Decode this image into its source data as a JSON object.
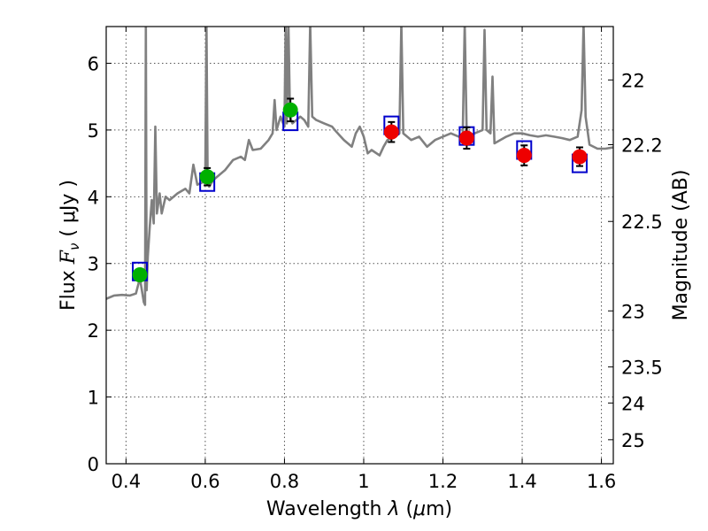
{
  "chart_data": {
    "type": "scatter",
    "xlabel_prefix": "Wavelength",
    "xlabel_symbol": "λ",
    "xlabel_unit_open": "(",
    "xlabel_unit_mu": "μ",
    "xlabel_unit_rest": "m)",
    "ylabel_prefix": "Flux",
    "ylabel_symbol": "F",
    "ylabel_sub": "ν",
    "ylabel_unit": "( μJy )",
    "y2label": "Magnitude (AB)",
    "xlim": [
      0.35,
      1.63
    ],
    "ylim": [
      0,
      6.55
    ],
    "x_ticks": [
      0.4,
      0.6,
      0.8,
      1.0,
      1.2,
      1.4,
      1.6
    ],
    "x_tick_labels": [
      "0.4",
      "0.6",
      "0.8",
      "1",
      "1.2",
      "1.4",
      "1.6"
    ],
    "y_ticks": [
      0,
      1,
      2,
      3,
      4,
      5,
      6
    ],
    "y_tick_labels": [
      "0",
      "1",
      "2",
      "3",
      "4",
      "5",
      "6"
    ],
    "y2_ticks": [
      {
        "label": "22",
        "flux": 5.75
      },
      {
        "label": "22.2",
        "flux": 4.78
      },
      {
        "label": "22.5",
        "flux": 3.63
      },
      {
        "label": "23",
        "flux": 2.29
      },
      {
        "label": "23.5",
        "flux": 1.45
      },
      {
        "label": "24",
        "flux": 0.91
      },
      {
        "label": "25",
        "flux": 0.36
      }
    ],
    "grid": true,
    "colors": {
      "spectrum": "#808080",
      "model_box": "#0000cc",
      "optical_point": "#00b000",
      "nir_point": "#ee0000",
      "error_bar": "#000000"
    },
    "spectrum": [
      [
        0.35,
        2.47
      ],
      [
        0.37,
        2.52
      ],
      [
        0.39,
        2.53
      ],
      [
        0.41,
        2.52
      ],
      [
        0.425,
        2.55
      ],
      [
        0.435,
        2.78
      ],
      [
        0.445,
        2.42
      ],
      [
        0.448,
        2.38
      ],
      [
        0.45,
        6.6
      ],
      [
        0.452,
        2.6
      ],
      [
        0.455,
        3.1
      ],
      [
        0.46,
        3.55
      ],
      [
        0.465,
        3.95
      ],
      [
        0.47,
        3.6
      ],
      [
        0.474,
        5.05
      ],
      [
        0.478,
        3.75
      ],
      [
        0.485,
        4.05
      ],
      [
        0.49,
        3.75
      ],
      [
        0.5,
        4.0
      ],
      [
        0.51,
        3.95
      ],
      [
        0.53,
        4.05
      ],
      [
        0.55,
        4.12
      ],
      [
        0.56,
        4.05
      ],
      [
        0.57,
        4.48
      ],
      [
        0.58,
        4.18
      ],
      [
        0.595,
        4.22
      ],
      [
        0.6,
        4.2
      ],
      [
        0.603,
        6.6
      ],
      [
        0.606,
        4.3
      ],
      [
        0.61,
        4.15
      ],
      [
        0.62,
        4.25
      ],
      [
        0.65,
        4.4
      ],
      [
        0.67,
        4.55
      ],
      [
        0.69,
        4.6
      ],
      [
        0.7,
        4.55
      ],
      [
        0.71,
        4.85
      ],
      [
        0.72,
        4.7
      ],
      [
        0.74,
        4.72
      ],
      [
        0.76,
        4.85
      ],
      [
        0.77,
        4.95
      ],
      [
        0.775,
        5.45
      ],
      [
        0.78,
        5.0
      ],
      [
        0.79,
        5.2
      ],
      [
        0.8,
        5.05
      ],
      [
        0.803,
        6.6
      ],
      [
        0.806,
        5.1
      ],
      [
        0.81,
        6.6
      ],
      [
        0.814,
        5.2
      ],
      [
        0.82,
        5.1
      ],
      [
        0.84,
        5.2
      ],
      [
        0.85,
        5.15
      ],
      [
        0.86,
        5.05
      ],
      [
        0.865,
        6.6
      ],
      [
        0.87,
        5.2
      ],
      [
        0.88,
        5.15
      ],
      [
        0.9,
        5.1
      ],
      [
        0.92,
        5.05
      ],
      [
        0.93,
        4.98
      ],
      [
        0.95,
        4.85
      ],
      [
        0.97,
        4.75
      ],
      [
        0.98,
        4.95
      ],
      [
        0.99,
        5.05
      ],
      [
        1.0,
        4.9
      ],
      [
        1.01,
        4.65
      ],
      [
        1.02,
        4.7
      ],
      [
        1.04,
        4.62
      ],
      [
        1.05,
        4.75
      ],
      [
        1.06,
        4.85
      ],
      [
        1.08,
        4.9
      ],
      [
        1.09,
        4.95
      ],
      [
        1.095,
        6.6
      ],
      [
        1.1,
        4.95
      ],
      [
        1.12,
        4.85
      ],
      [
        1.14,
        4.9
      ],
      [
        1.16,
        4.75
      ],
      [
        1.18,
        4.85
      ],
      [
        1.2,
        4.9
      ],
      [
        1.22,
        4.95
      ],
      [
        1.24,
        4.9
      ],
      [
        1.25,
        4.95
      ],
      [
        1.255,
        6.6
      ],
      [
        1.26,
        4.9
      ],
      [
        1.28,
        4.95
      ],
      [
        1.3,
        5.0
      ],
      [
        1.305,
        6.5
      ],
      [
        1.31,
        5.0
      ],
      [
        1.32,
        4.95
      ],
      [
        1.325,
        5.8
      ],
      [
        1.33,
        4.8
      ],
      [
        1.36,
        4.9
      ],
      [
        1.38,
        4.95
      ],
      [
        1.4,
        4.95
      ],
      [
        1.42,
        4.92
      ],
      [
        1.44,
        4.9
      ],
      [
        1.46,
        4.92
      ],
      [
        1.48,
        4.9
      ],
      [
        1.5,
        4.88
      ],
      [
        1.52,
        4.85
      ],
      [
        1.54,
        4.9
      ],
      [
        1.55,
        5.3
      ],
      [
        1.555,
        6.6
      ],
      [
        1.56,
        5.2
      ],
      [
        1.57,
        4.78
      ],
      [
        1.59,
        4.72
      ],
      [
        1.61,
        4.72
      ],
      [
        1.63,
        4.74
      ]
    ],
    "model_boxes": [
      {
        "x": 0.435,
        "y": 2.88
      },
      {
        "x": 0.605,
        "y": 4.22
      },
      {
        "x": 0.815,
        "y": 5.13
      },
      {
        "x": 1.07,
        "y": 5.07
      },
      {
        "x": 1.26,
        "y": 4.91
      },
      {
        "x": 1.405,
        "y": 4.7
      },
      {
        "x": 1.545,
        "y": 4.5
      }
    ],
    "series": [
      {
        "points": [
          {
            "x": 0.435,
            "y": 2.83,
            "err": 0.06
          },
          {
            "x": 0.605,
            "y": 4.3,
            "err": 0.13
          },
          {
            "x": 0.815,
            "y": 5.3,
            "err": 0.17
          }
        ]
      },
      {
        "points": [
          {
            "x": 1.07,
            "y": 4.97,
            "err": 0.15
          },
          {
            "x": 1.26,
            "y": 4.88,
            "err": 0.16
          },
          {
            "x": 1.405,
            "y": 4.62,
            "err": 0.15
          },
          {
            "x": 1.545,
            "y": 4.6,
            "err": 0.14
          }
        ]
      }
    ]
  }
}
